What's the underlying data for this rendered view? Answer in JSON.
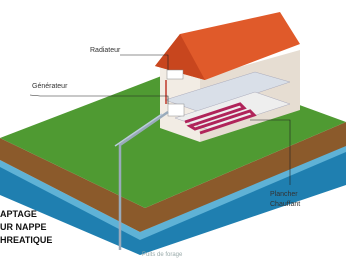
{
  "labels": {
    "radiateur": "Radiateur",
    "generateur": "Générateur",
    "plancher": [
      "Plancher",
      "Chauffant"
    ],
    "captage": [
      "APTAGE",
      "UR NAPPE",
      "HREATIQUE"
    ],
    "puits": "Puits de forage"
  }
}
